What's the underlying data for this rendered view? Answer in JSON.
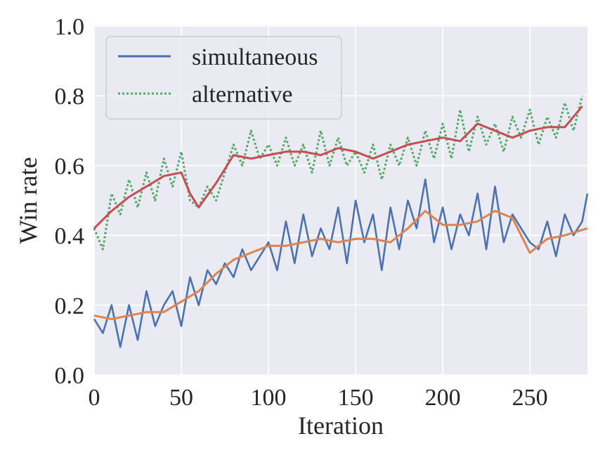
{
  "chart_data": {
    "type": "line",
    "xlabel": "Iteration",
    "ylabel": "Win rate",
    "xlim": [
      0,
      283
    ],
    "ylim": [
      0.0,
      1.0
    ],
    "xticks": [
      0,
      50,
      100,
      150,
      200,
      250
    ],
    "yticks": [
      "0.0",
      "0.2",
      "0.4",
      "0.6",
      "0.8",
      "1.0"
    ],
    "grid": true,
    "legend_position": "top-left",
    "colors": {
      "background": "#eaeaf2",
      "grid": "#ffffff",
      "simultaneous": "#4c72b0",
      "alternative": "#55a868",
      "simultaneous_smooth": "#dd8452",
      "alternative_smooth": "#c44e52"
    },
    "series": [
      {
        "name": "simultaneous",
        "style": "solid",
        "key": "simultaneous",
        "x": [
          0,
          5,
          10,
          15,
          20,
          25,
          30,
          35,
          40,
          45,
          50,
          55,
          60,
          65,
          70,
          75,
          80,
          85,
          90,
          95,
          100,
          105,
          110,
          115,
          120,
          125,
          130,
          135,
          140,
          145,
          150,
          155,
          160,
          165,
          170,
          175,
          180,
          185,
          190,
          195,
          200,
          205,
          210,
          215,
          220,
          225,
          230,
          235,
          240,
          245,
          250,
          255,
          260,
          265,
          270,
          275,
          280,
          283
        ],
        "y": [
          0.16,
          0.12,
          0.2,
          0.08,
          0.2,
          0.1,
          0.24,
          0.14,
          0.2,
          0.24,
          0.14,
          0.28,
          0.2,
          0.3,
          0.26,
          0.32,
          0.28,
          0.36,
          0.3,
          0.34,
          0.38,
          0.3,
          0.44,
          0.32,
          0.46,
          0.34,
          0.42,
          0.36,
          0.48,
          0.32,
          0.5,
          0.38,
          0.46,
          0.3,
          0.48,
          0.36,
          0.5,
          0.42,
          0.56,
          0.38,
          0.48,
          0.36,
          0.46,
          0.4,
          0.52,
          0.36,
          0.54,
          0.38,
          0.46,
          0.42,
          0.38,
          0.36,
          0.44,
          0.34,
          0.46,
          0.4,
          0.44,
          0.52
        ]
      },
      {
        "name": "alternative",
        "style": "dotted",
        "key": "alternative",
        "x": [
          0,
          5,
          10,
          15,
          20,
          25,
          30,
          35,
          40,
          45,
          50,
          55,
          60,
          65,
          70,
          75,
          80,
          85,
          90,
          95,
          100,
          105,
          110,
          115,
          120,
          125,
          130,
          135,
          140,
          145,
          150,
          155,
          160,
          165,
          170,
          175,
          180,
          185,
          190,
          195,
          200,
          205,
          210,
          215,
          220,
          225,
          230,
          235,
          240,
          245,
          250,
          255,
          260,
          265,
          270,
          275,
          280
        ],
        "y": [
          0.42,
          0.36,
          0.52,
          0.46,
          0.56,
          0.48,
          0.58,
          0.5,
          0.62,
          0.54,
          0.64,
          0.5,
          0.48,
          0.54,
          0.5,
          0.58,
          0.66,
          0.6,
          0.7,
          0.62,
          0.66,
          0.6,
          0.68,
          0.6,
          0.66,
          0.58,
          0.7,
          0.6,
          0.68,
          0.6,
          0.64,
          0.58,
          0.66,
          0.56,
          0.66,
          0.6,
          0.68,
          0.6,
          0.7,
          0.62,
          0.72,
          0.62,
          0.76,
          0.64,
          0.74,
          0.66,
          0.72,
          0.64,
          0.74,
          0.68,
          0.76,
          0.66,
          0.74,
          0.68,
          0.78,
          0.7,
          0.8
        ]
      },
      {
        "name": "simultaneous (smoothed)",
        "style": "solid",
        "key": "simultaneous_smooth",
        "x": [
          0,
          10,
          20,
          30,
          40,
          50,
          60,
          70,
          80,
          90,
          100,
          110,
          120,
          130,
          140,
          150,
          160,
          170,
          180,
          190,
          200,
          210,
          220,
          230,
          240,
          250,
          260,
          270,
          283
        ],
        "y": [
          0.17,
          0.16,
          0.17,
          0.18,
          0.18,
          0.21,
          0.24,
          0.29,
          0.33,
          0.35,
          0.37,
          0.37,
          0.38,
          0.39,
          0.38,
          0.39,
          0.39,
          0.38,
          0.42,
          0.47,
          0.43,
          0.43,
          0.44,
          0.47,
          0.45,
          0.35,
          0.39,
          0.4,
          0.42
        ]
      },
      {
        "name": "alternative (smoothed)",
        "style": "solid",
        "key": "alternative_smooth",
        "x": [
          0,
          10,
          20,
          30,
          40,
          50,
          55,
          60,
          70,
          80,
          90,
          100,
          110,
          120,
          130,
          140,
          150,
          160,
          170,
          180,
          190,
          200,
          210,
          220,
          230,
          240,
          250,
          260,
          270,
          280
        ],
        "y": [
          0.42,
          0.47,
          0.51,
          0.54,
          0.57,
          0.58,
          0.52,
          0.48,
          0.55,
          0.63,
          0.62,
          0.63,
          0.64,
          0.64,
          0.63,
          0.65,
          0.64,
          0.62,
          0.64,
          0.66,
          0.67,
          0.68,
          0.67,
          0.72,
          0.7,
          0.68,
          0.7,
          0.71,
          0.71,
          0.77
        ]
      }
    ],
    "legend": [
      {
        "label": "simultaneous",
        "style": "solid",
        "key": "simultaneous"
      },
      {
        "label": "alternative",
        "style": "dotted",
        "key": "alternative"
      }
    ]
  }
}
